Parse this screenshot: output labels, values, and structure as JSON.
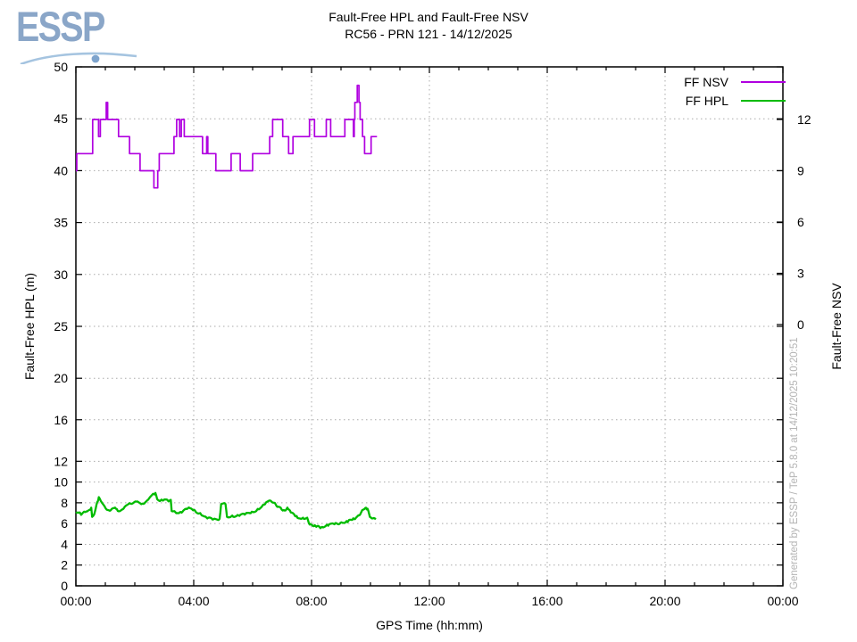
{
  "header": {
    "logo_text": "ESSP",
    "title_line1": "Fault-Free HPL and Fault-Free NSV",
    "title_line2": "RC56 - PRN 121 - 14/12/2025"
  },
  "watermark": "Generated by ESSP / TeP 5.8.0 at 14/12/2025 10:20:51",
  "chart_data": {
    "type": "line",
    "title": "Fault-Free HPL and Fault-Free NSV",
    "subtitle": "RC56 - PRN 121 - 14/12/2025",
    "xlabel": "GPS Time (hh:mm)",
    "ylabel_left": "Fault-Free HPL (m)",
    "ylabel_right": "Fault-Free NSV",
    "x_tick_hours": [
      0,
      4,
      8,
      12,
      16,
      20,
      24
    ],
    "x_tick_labels": [
      "00:00",
      "04:00",
      "08:00",
      "12:00",
      "16:00",
      "20:00",
      "00:00"
    ],
    "x_minor_interval_hours": 1,
    "x_range_hours": [
      0,
      24
    ],
    "y_left_ticks": [
      0,
      2,
      4,
      6,
      8,
      10,
      12,
      16,
      20,
      25,
      30,
      35,
      40,
      45,
      50
    ],
    "y_left_range": [
      0,
      50
    ],
    "y_right_ticks": [
      12,
      9,
      6,
      3,
      0
    ],
    "grid": "dotted",
    "legend_position": "top-right",
    "legend": [
      {
        "label": "FF NSV",
        "color": "#b000e0"
      },
      {
        "label": "FF HPL",
        "color": "#00bb00"
      }
    ],
    "series": [
      {
        "name": "FF NSV",
        "axis": "right",
        "style": "steps",
        "color": "#b000e0",
        "points": [
          [
            0.0,
            9
          ],
          [
            0.03,
            10
          ],
          [
            0.57,
            12
          ],
          [
            0.77,
            11
          ],
          [
            0.83,
            12
          ],
          [
            1.03,
            13
          ],
          [
            1.08,
            12
          ],
          [
            1.45,
            11
          ],
          [
            1.82,
            10
          ],
          [
            2.18,
            9
          ],
          [
            2.65,
            8
          ],
          [
            2.78,
            9
          ],
          [
            2.83,
            10
          ],
          [
            3.33,
            11
          ],
          [
            3.42,
            12
          ],
          [
            3.52,
            11
          ],
          [
            3.58,
            12
          ],
          [
            3.68,
            11
          ],
          [
            4.3,
            10
          ],
          [
            4.44,
            11
          ],
          [
            4.48,
            10
          ],
          [
            4.75,
            9
          ],
          [
            5.27,
            10
          ],
          [
            5.58,
            9
          ],
          [
            6.0,
            10
          ],
          [
            6.58,
            11
          ],
          [
            6.68,
            12
          ],
          [
            7.02,
            11
          ],
          [
            7.22,
            10
          ],
          [
            7.37,
            11
          ],
          [
            7.93,
            12
          ],
          [
            8.1,
            11
          ],
          [
            8.5,
            12
          ],
          [
            8.65,
            11
          ],
          [
            9.13,
            12
          ],
          [
            9.42,
            11
          ],
          [
            9.45,
            12
          ],
          [
            9.47,
            13
          ],
          [
            9.55,
            14
          ],
          [
            9.61,
            13
          ],
          [
            9.65,
            12
          ],
          [
            9.73,
            11
          ],
          [
            9.8,
            10
          ],
          [
            10.02,
            11
          ],
          [
            10.22,
            11
          ]
        ]
      },
      {
        "name": "FF HPL",
        "axis": "left",
        "style": "line",
        "color": "#00bb00",
        "points": [
          [
            0.0,
            7.0
          ],
          [
            0.1,
            7.1
          ],
          [
            0.18,
            6.9
          ],
          [
            0.28,
            7.2
          ],
          [
            0.38,
            7.1
          ],
          [
            0.47,
            7.3
          ],
          [
            0.52,
            7.5
          ],
          [
            0.55,
            6.6
          ],
          [
            0.62,
            6.9
          ],
          [
            0.7,
            7.8
          ],
          [
            0.78,
            8.5
          ],
          [
            0.85,
            8.1
          ],
          [
            0.95,
            7.7
          ],
          [
            1.05,
            7.4
          ],
          [
            1.15,
            7.3
          ],
          [
            1.25,
            7.4
          ],
          [
            1.33,
            7.6
          ],
          [
            1.42,
            7.2
          ],
          [
            1.52,
            7.3
          ],
          [
            1.62,
            7.5
          ],
          [
            1.72,
            7.7
          ],
          [
            1.82,
            7.9
          ],
          [
            1.92,
            8.0
          ],
          [
            2.02,
            8.2
          ],
          [
            2.12,
            8.0
          ],
          [
            2.22,
            7.8
          ],
          [
            2.32,
            8.0
          ],
          [
            2.42,
            8.3
          ],
          [
            2.52,
            8.5
          ],
          [
            2.62,
            8.8
          ],
          [
            2.7,
            8.9
          ],
          [
            2.76,
            8.4
          ],
          [
            2.85,
            8.2
          ],
          [
            3.0,
            8.3
          ],
          [
            3.15,
            8.2
          ],
          [
            3.22,
            8.3
          ],
          [
            3.25,
            7.2
          ],
          [
            3.38,
            7.1
          ],
          [
            3.5,
            7.0
          ],
          [
            3.65,
            7.2
          ],
          [
            3.8,
            7.5
          ],
          [
            3.95,
            7.4
          ],
          [
            4.1,
            7.1
          ],
          [
            4.25,
            6.9
          ],
          [
            4.4,
            6.6
          ],
          [
            4.55,
            6.5
          ],
          [
            4.7,
            6.4
          ],
          [
            4.88,
            6.4
          ],
          [
            4.93,
            7.9
          ],
          [
            5.08,
            7.9
          ],
          [
            5.13,
            6.6
          ],
          [
            5.25,
            6.7
          ],
          [
            5.4,
            6.7
          ],
          [
            5.55,
            6.8
          ],
          [
            5.7,
            6.9
          ],
          [
            5.85,
            7.0
          ],
          [
            6.0,
            7.1
          ],
          [
            6.15,
            7.3
          ],
          [
            6.3,
            7.6
          ],
          [
            6.45,
            8.0
          ],
          [
            6.55,
            8.2
          ],
          [
            6.65,
            8.1
          ],
          [
            6.75,
            8.0
          ],
          [
            6.85,
            7.6
          ],
          [
            6.95,
            7.5
          ],
          [
            7.02,
            7.2
          ],
          [
            7.12,
            7.3
          ],
          [
            7.18,
            7.6
          ],
          [
            7.24,
            7.3
          ],
          [
            7.38,
            6.9
          ],
          [
            7.52,
            6.6
          ],
          [
            7.68,
            6.5
          ],
          [
            7.85,
            6.5
          ],
          [
            7.94,
            5.9
          ],
          [
            8.08,
            5.8
          ],
          [
            8.22,
            5.7
          ],
          [
            8.33,
            5.6
          ],
          [
            8.48,
            5.8
          ],
          [
            8.62,
            5.9
          ],
          [
            8.78,
            6.0
          ],
          [
            8.92,
            6.0
          ],
          [
            9.08,
            6.1
          ],
          [
            9.22,
            6.2
          ],
          [
            9.36,
            6.4
          ],
          [
            9.5,
            6.5
          ],
          [
            9.62,
            6.8
          ],
          [
            9.72,
            7.3
          ],
          [
            9.82,
            7.5
          ],
          [
            9.9,
            7.4
          ],
          [
            9.98,
            6.7
          ],
          [
            10.08,
            6.5
          ],
          [
            10.18,
            6.4
          ]
        ]
      }
    ]
  }
}
